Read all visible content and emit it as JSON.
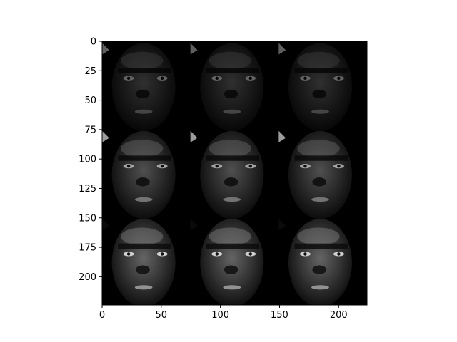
{
  "chart_data": {
    "type": "image",
    "title": "",
    "xlabel": "",
    "ylabel": "",
    "image_size": [
      224,
      224
    ],
    "grid": {
      "rows": 3,
      "cols": 3
    },
    "xlim": [
      0,
      224
    ],
    "ylim": [
      224,
      0
    ],
    "x_ticks": [
      0,
      50,
      100,
      150,
      200
    ],
    "y_ticks": [
      0,
      25,
      50,
      75,
      100,
      125,
      150,
      175,
      200
    ],
    "x_tick_labels": [
      "0",
      "50",
      "100",
      "150",
      "200"
    ],
    "y_tick_labels": [
      "0",
      "25",
      "50",
      "75",
      "100",
      "125",
      "150",
      "175",
      "200"
    ],
    "panels": [
      {
        "row": 0,
        "col": 0,
        "brightness": 0.45
      },
      {
        "row": 0,
        "col": 1,
        "brightness": 0.45
      },
      {
        "row": 0,
        "col": 2,
        "brightness": 0.45
      },
      {
        "row": 1,
        "col": 0,
        "brightness": 0.75
      },
      {
        "row": 1,
        "col": 1,
        "brightness": 0.75
      },
      {
        "row": 1,
        "col": 2,
        "brightness": 0.75
      },
      {
        "row": 2,
        "col": 0,
        "brightness": 0.95
      },
      {
        "row": 2,
        "col": 1,
        "brightness": 0.95
      },
      {
        "row": 2,
        "col": 2,
        "brightness": 0.95
      }
    ],
    "colors": {
      "background": "#000000",
      "face": "#3a3a3a",
      "highlight": "#8a8a8a",
      "eye": "#ffffff",
      "spine": "#000000"
    }
  }
}
